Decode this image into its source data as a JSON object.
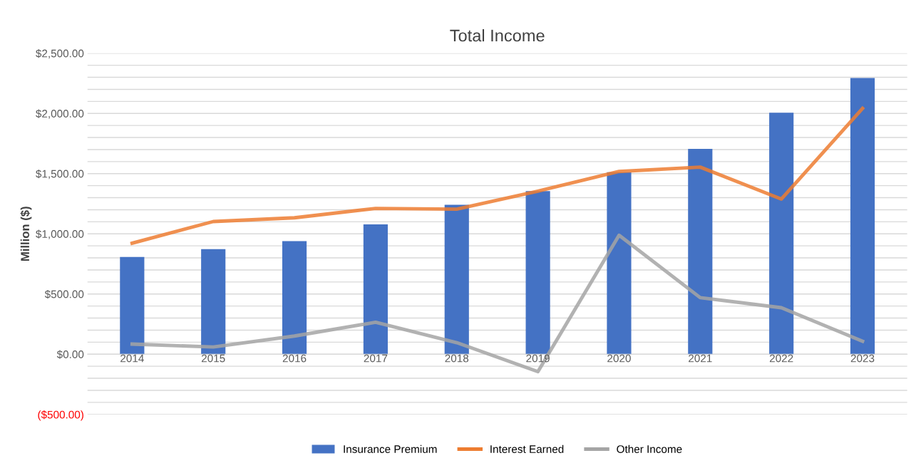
{
  "chart_data": {
    "type": "bar",
    "title": "Total Income",
    "ylabel": "Million ($)",
    "categories": [
      "2014",
      "2015",
      "2016",
      "2017",
      "2018",
      "2019",
      "2020",
      "2021",
      "2022",
      "2023"
    ],
    "series": [
      {
        "name": "Insurance Premium",
        "color": "#4472c4",
        "values": [
          807,
          873,
          940,
          1078,
          1241,
          1355,
          1512,
          1705,
          2006,
          2295
        ]
      },
      {
        "name": "Interest Earned",
        "type": "line",
        "color": "#ed7d31",
        "values": [
          922,
          1102,
          1133,
          1211,
          1205,
          1355,
          1518,
          1554,
          1289,
          2042
        ]
      },
      {
        "name": "Other Income",
        "type": "line",
        "color": "#a5a5a5",
        "values": [
          84,
          60,
          151,
          265,
          96,
          -145,
          988,
          470,
          386,
          108
        ]
      }
    ],
    "ylim": [
      -500,
      2500
    ],
    "yticks": [
      {
        "value": -500,
        "label": "($500.00)"
      },
      {
        "value": -400,
        "label": null
      },
      {
        "value": -300,
        "label": null
      },
      {
        "value": -200,
        "label": null
      },
      {
        "value": -100,
        "label": null
      },
      {
        "value": 0,
        "label": "$0.00"
      },
      {
        "value": 100,
        "label": null
      },
      {
        "value": 200,
        "label": null
      },
      {
        "value": 300,
        "label": null
      },
      {
        "value": 400,
        "label": null
      },
      {
        "value": 500,
        "label": "$500.00"
      },
      {
        "value": 600,
        "label": null
      },
      {
        "value": 700,
        "label": null
      },
      {
        "value": 800,
        "label": null
      },
      {
        "value": 900,
        "label": null
      },
      {
        "value": 1000,
        "label": "$1,000.00"
      },
      {
        "value": 1100,
        "label": null
      },
      {
        "value": 1200,
        "label": null
      },
      {
        "value": 1300,
        "label": null
      },
      {
        "value": 1400,
        "label": null
      },
      {
        "value": 1500,
        "label": "$1,500.00"
      },
      {
        "value": 1600,
        "label": null
      },
      {
        "value": 1700,
        "label": null
      },
      {
        "value": 1800,
        "label": null
      },
      {
        "value": 1900,
        "label": null
      },
      {
        "value": 2000,
        "label": "$2,000.00"
      },
      {
        "value": 2100,
        "label": null
      },
      {
        "value": 2200,
        "label": null
      },
      {
        "value": 2300,
        "label": null
      },
      {
        "value": 2400,
        "label": null
      },
      {
        "value": 2500,
        "label": "$2,500.00"
      }
    ],
    "grid": "y",
    "legend": "bottom",
    "line_style": "solid",
    "marker": "none"
  }
}
